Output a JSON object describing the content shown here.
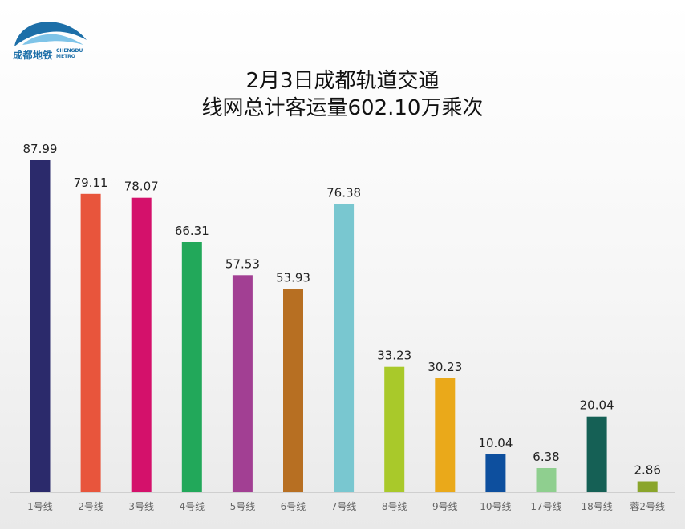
{
  "logo": {
    "name_cn": "成都地铁",
    "name_en_line1": "CHENGDU",
    "name_en_line2": "METRO",
    "icon": "chengdu-metro-logo-icon"
  },
  "colors": {
    "axis": "#cfcfcf",
    "logo_blue": "#1d6fa8",
    "logo_light": "#7fc4e8"
  },
  "chart_data": {
    "type": "bar",
    "title_line1": "2月3日成都轨道交通",
    "title_line2": "线网总计客运量602.10万乘次",
    "categories": [
      "1号线",
      "2号线",
      "3号线",
      "4号线",
      "5号线",
      "6号线",
      "7号线",
      "8号线",
      "9号线",
      "10号线",
      "17号线",
      "18号线",
      "蓉2号线"
    ],
    "values": [
      87.99,
      79.11,
      78.07,
      66.31,
      57.53,
      53.93,
      76.38,
      33.23,
      30.23,
      10.04,
      6.38,
      20.04,
      2.86
    ],
    "value_labels": [
      "87.99",
      "79.11",
      "78.07",
      "66.31",
      "57.53",
      "53.93",
      "76.38",
      "33.23",
      "30.23",
      "10.04",
      "6.38",
      "20.04",
      "2.86"
    ],
    "bar_colors": [
      "#2b2a6b",
      "#e8553c",
      "#d4116b",
      "#22a85a",
      "#a23f93",
      "#b76f22",
      "#79c7d0",
      "#a9c92a",
      "#eaa91a",
      "#0d4f9e",
      "#8fcf8f",
      "#156055",
      "#8aa52b"
    ],
    "ylim": [
      0,
      90
    ],
    "grid": false,
    "legend": "none"
  }
}
